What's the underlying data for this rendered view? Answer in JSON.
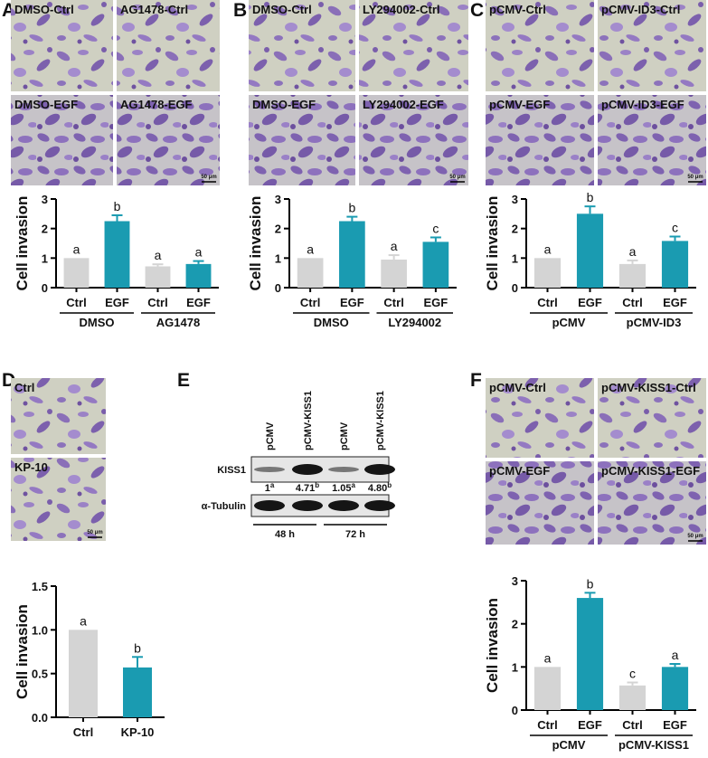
{
  "panel_letters": [
    "A",
    "B",
    "C",
    "D",
    "E",
    "F"
  ],
  "images": [
    {
      "captions": [
        "DMSO-Ctrl",
        "AG1478-Ctrl",
        "DMSO-EGF",
        "AG1478-EGF"
      ],
      "scale_bar": "50 μm"
    },
    {
      "captions": [
        "DMSO-Ctrl",
        "LY294002-Ctrl",
        "DMSO-EGF",
        "LY294002-EGF"
      ],
      "scale_bar": "50 μm"
    },
    {
      "captions": [
        "pCMV-Ctrl",
        "pCMV-ID3-Ctrl",
        "pCMV-EGF",
        "pCMV-ID3-EGF"
      ],
      "scale_bar": "50 μm"
    },
    {
      "captions": [
        "Ctrl",
        "KP-10"
      ],
      "scale_bar": "50 μm"
    },
    {
      "captions": [
        "pCMV-Ctrl",
        "pCMV-KISS1-Ctrl",
        "pCMV-EGF",
        "pCMV-KISS1-EGF"
      ],
      "scale_bar": "50 μm"
    }
  ],
  "blot": {
    "lanes": [
      "pCMV",
      "pCMV-KISS1",
      "pCMV",
      "pCMV-KISS1"
    ],
    "rows": [
      "KISS1",
      "α-Tubulin"
    ],
    "quantification": [
      {
        "text": "1",
        "sup": "a"
      },
      {
        "text": "4.71",
        "sup": "b"
      },
      {
        "text": "1.05",
        "sup": "a"
      },
      {
        "text": "4.80",
        "sup": "b"
      }
    ],
    "times": [
      "48 h",
      "72 h"
    ]
  },
  "chart_data": [
    {
      "type": "bar",
      "ylabel": "Cell invasion",
      "categories": [
        "Ctrl",
        "EGF",
        "Ctrl",
        "EGF"
      ],
      "groups": [
        "DMSO",
        "AG1478"
      ],
      "values": [
        1,
        2.25,
        0.72,
        0.8
      ],
      "errors": [
        0,
        0.2,
        0.07,
        0.1
      ],
      "letters": [
        "a",
        "b",
        "a",
        "a"
      ],
      "colors": [
        "#d4d4d4",
        "#1a9bb1",
        "#d4d4d4",
        "#1a9bb1"
      ],
      "ylim": [
        0,
        3
      ],
      "yticks": [
        0,
        1,
        2,
        3
      ]
    },
    {
      "type": "bar",
      "ylabel": "Cell invasion",
      "categories": [
        "Ctrl",
        "EGF",
        "Ctrl",
        "EGF"
      ],
      "groups": [
        "DMSO",
        "LY294002"
      ],
      "values": [
        1,
        2.25,
        0.95,
        1.55
      ],
      "errors": [
        0,
        0.15,
        0.15,
        0.15
      ],
      "letters": [
        "a",
        "b",
        "a",
        "c"
      ],
      "colors": [
        "#d4d4d4",
        "#1a9bb1",
        "#d4d4d4",
        "#1a9bb1"
      ],
      "ylim": [
        0,
        3
      ],
      "yticks": [
        0,
        1,
        2,
        3
      ]
    },
    {
      "type": "bar",
      "ylabel": "Cell invasion",
      "categories": [
        "Ctrl",
        "EGF",
        "Ctrl",
        "EGF"
      ],
      "groups": [
        "pCMV",
        "pCMV-ID3"
      ],
      "values": [
        1,
        2.5,
        0.8,
        1.58
      ],
      "errors": [
        0,
        0.25,
        0.12,
        0.15
      ],
      "letters": [
        "a",
        "b",
        "a",
        "c"
      ],
      "colors": [
        "#d4d4d4",
        "#1a9bb1",
        "#d4d4d4",
        "#1a9bb1"
      ],
      "ylim": [
        0,
        3
      ],
      "yticks": [
        0,
        1,
        2,
        3
      ]
    },
    {
      "type": "bar",
      "ylabel": "Cell invasion",
      "categories": [
        "Ctrl",
        "KP-10"
      ],
      "groups": [],
      "values": [
        1,
        0.57
      ],
      "errors": [
        0,
        0.12
      ],
      "letters": [
        "a",
        "b"
      ],
      "colors": [
        "#d4d4d4",
        "#1a9bb1"
      ],
      "ylim": [
        0,
        1.5
      ],
      "yticks": [
        {
          "value": 0,
          "label": "0.0"
        },
        0.5,
        {
          "value": 1,
          "label": "1.0"
        },
        1.5
      ]
    },
    {
      "type": "bar",
      "ylabel": "Cell invasion",
      "categories": [
        "Ctrl",
        "EGF",
        "Ctrl",
        "EGF"
      ],
      "groups": [
        "pCMV",
        "pCMV-KISS1"
      ],
      "values": [
        1,
        2.6,
        0.57,
        1.0
      ],
      "errors": [
        0,
        0.12,
        0.07,
        0.07
      ],
      "letters": [
        "a",
        "b",
        "c",
        "a"
      ],
      "colors": [
        "#d4d4d4",
        "#1a9bb1",
        "#d4d4d4",
        "#1a9bb1"
      ],
      "ylim": [
        0,
        3
      ],
      "yticks": [
        0,
        1,
        2,
        3
      ]
    }
  ]
}
